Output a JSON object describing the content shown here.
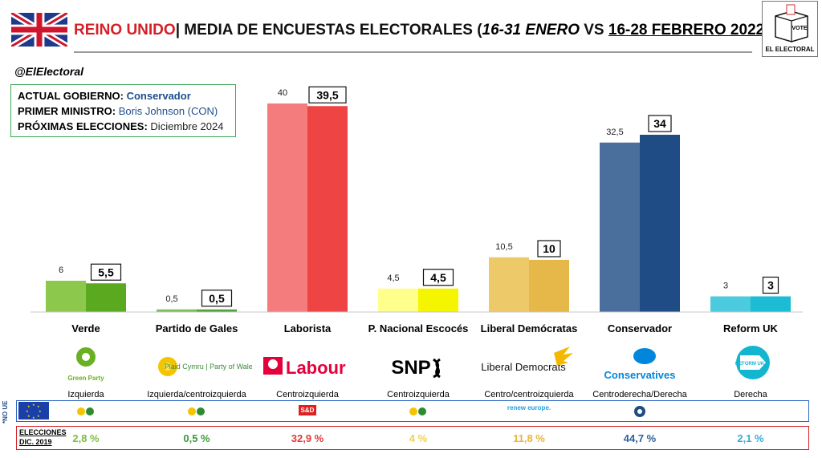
{
  "header": {
    "country": "REINO UNIDO",
    "separator": "|",
    "title_main": "MEDIA DE ENCUESTAS ELECTORALES (",
    "period1": "16-31 ENERO",
    "vs": " VS ",
    "period2": "16-28 FEBRERO 2022",
    "close": ")",
    "logo_vote": "VOTE",
    "logo_brand": "EL ELECTORAL",
    "handle": "@ElElectoral"
  },
  "government": {
    "gov_label": "ACTUAL GOBIERNO:",
    "gov_value": "Conservador",
    "pm_label": "PRIMER MINISTRO:",
    "pm_value": "Boris Johnson (CON)",
    "next_label": "PRÓXIMAS ELECCIONES:",
    "next_value": "Diciembre 2024"
  },
  "chart_data": {
    "type": "bar",
    "categories": [
      "Verde",
      "Partido de Gales",
      "Laborista",
      "P. Nacional Escocés",
      "Liberal Demócratas",
      "Conservador",
      "Reform UK"
    ],
    "series": [
      {
        "values": [
          6,
          0.5,
          40,
          4.5,
          10.5,
          32.5,
          3
        ]
      },
      {
        "values": [
          5.5,
          0.5,
          39.5,
          4.5,
          10,
          34,
          3
        ]
      }
    ],
    "value_labels_prev": [
      "6",
      "0,5",
      "40",
      "4,5",
      "10,5",
      "32,5",
      "3"
    ],
    "value_labels_curr": [
      "5,5",
      "0,5",
      "39,5",
      "4,5",
      "10",
      "34",
      "3"
    ],
    "colors_prev": [
      "#8cc84b",
      "#7cbd55",
      "#f47c7c",
      "#ffff8c",
      "#edc96a",
      "#4b6f9c",
      "#4ccbde"
    ],
    "colors_curr": [
      "#5aa91e",
      "#52a33a",
      "#ef4444",
      "#f5f500",
      "#e6b84a",
      "#1f4c85",
      "#1cbcd4"
    ],
    "ylim": [
      0,
      42
    ],
    "grid": false
  },
  "parties": [
    {
      "logo_text": "Green Party",
      "ideology": "Izquierda",
      "eu_group": "",
      "result_2019": "2,8 %",
      "result_color": "#7cbd3e"
    },
    {
      "logo_text": "Plaid Cymru | Party of Wales",
      "ideology": "Izquierda/centroizquierda",
      "eu_group": "",
      "result_2019": "0,5 %",
      "result_color": "#3a9a3a"
    },
    {
      "logo_text": "Labour",
      "ideology": "Centroizquierda",
      "eu_group": "S&D",
      "result_2019": "32,9 %",
      "result_color": "#e03a3a"
    },
    {
      "logo_text": "SNP",
      "ideology": "Centroizquierda",
      "eu_group": "",
      "result_2019": "4 %",
      "result_color": "#f0d24a"
    },
    {
      "logo_text": "Liberal Democrats",
      "ideology": "Centro/centroizquierda",
      "eu_group": "renew europe.",
      "result_2019": "11,8 %",
      "result_color": "#e8b43a"
    },
    {
      "logo_text": "Conservatives",
      "ideology": "Centroderecha/Derecha",
      "eu_group": "",
      "result_2019": "44,7 %",
      "result_color": "#2d5f9e"
    },
    {
      "logo_text": "REFORM UK",
      "ideology": "Derecha",
      "eu_group": "",
      "result_2019": "2,1 %",
      "result_color": "#3aa9d8"
    }
  ],
  "eu_row": {
    "no_ue_label": "*NO UE"
  },
  "elections": {
    "title_line1": "ELECCIONES",
    "title_line2": "DIC. 2019"
  }
}
